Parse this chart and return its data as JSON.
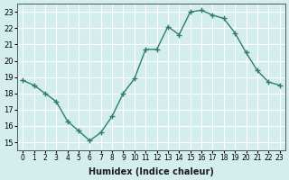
{
  "x": [
    0,
    1,
    2,
    3,
    4,
    5,
    6,
    7,
    8,
    9,
    10,
    11,
    12,
    13,
    14,
    15,
    16,
    17,
    18,
    19,
    20,
    21,
    22,
    23
  ],
  "y": [
    18.8,
    18.5,
    18.0,
    17.5,
    16.3,
    15.7,
    15.1,
    15.6,
    16.6,
    18.0,
    18.9,
    20.7,
    20.7,
    22.1,
    21.6,
    23.0,
    23.1,
    22.8,
    22.6,
    21.7,
    20.5,
    19.4,
    18.7,
    18.5
  ],
  "xlim": [
    -0.5,
    23.5
  ],
  "ylim": [
    14.5,
    23.5
  ],
  "yticks": [
    15,
    16,
    17,
    18,
    19,
    20,
    21,
    22,
    23
  ],
  "xtick_labels": [
    "0",
    "1",
    "2",
    "3",
    "4",
    "5",
    "6",
    "7",
    "8",
    "9",
    "10",
    "11",
    "12",
    "13",
    "14",
    "15",
    "16",
    "17",
    "18",
    "19",
    "20",
    "21",
    "22",
    "23"
  ],
  "xlabel": "Humidex (Indice chaleur)",
  "line_color": "#2e7d6e",
  "marker_color": "#2e7d6e",
  "bg_color": "#d4eeee",
  "grid_color": "#ffffff",
  "title": ""
}
